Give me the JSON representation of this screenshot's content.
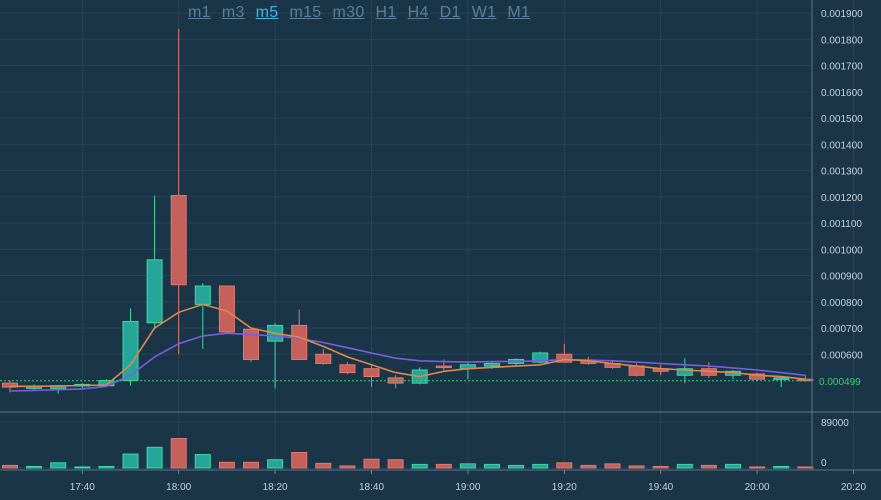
{
  "timeframes": [
    {
      "label": "m1",
      "active": false
    },
    {
      "label": "m3",
      "active": false
    },
    {
      "label": "m5",
      "active": true
    },
    {
      "label": "m15",
      "active": false
    },
    {
      "label": "m30",
      "active": false
    },
    {
      "label": "H1",
      "active": false
    },
    {
      "label": "H4",
      "active": false
    },
    {
      "label": "D1",
      "active": false
    },
    {
      "label": "W1",
      "active": false
    },
    {
      "label": "M1",
      "active": false
    }
  ],
  "colors": {
    "up": "#26a69a",
    "down": "#c5605a",
    "ma_fast": "#e0894a",
    "ma_slow": "#7a5ee0",
    "last_price": "#34d06b",
    "grid": "#274559"
  },
  "chart_data": {
    "type": "candlestick",
    "price_ticks": [
      "0.001900",
      "0.001800",
      "0.001700",
      "0.001600",
      "0.001500",
      "0.001400",
      "0.001300",
      "0.001200",
      "0.001100",
      "0.001000",
      "0.000900",
      "0.000800",
      "0.000700",
      "0.000600"
    ],
    "last_price_label": "0.000499",
    "last_price": 0.000499,
    "ylim": [
      0.00038,
      0.00195
    ],
    "time_labels": [
      "17:40",
      "18:00",
      "18:20",
      "18:40",
      "19:00",
      "19:20",
      "19:40",
      "20:00",
      "20:20"
    ],
    "time_label_indices": [
      3,
      7,
      11,
      15,
      19,
      23,
      27,
      31,
      35
    ],
    "volume_ticks": [
      "89000",
      "0"
    ],
    "volume_ylim": [
      0,
      89000
    ],
    "candles": [
      {
        "o": 0.00049,
        "h": 0.0005,
        "l": 0.000455,
        "c": 0.000475,
        "v": 5000
      },
      {
        "o": 0.00047,
        "h": 0.000485,
        "l": 0.00046,
        "c": 0.000478,
        "v": 3000
      },
      {
        "o": 0.00047,
        "h": 0.000482,
        "l": 0.00045,
        "c": 0.00048,
        "v": 10000
      },
      {
        "o": 0.00048,
        "h": 0.00049,
        "l": 0.00047,
        "c": 0.000485,
        "v": 2000
      },
      {
        "o": 0.00048,
        "h": 0.000505,
        "l": 0.000475,
        "c": 0.0005,
        "v": 3000
      },
      {
        "o": 0.0005,
        "h": 0.000775,
        "l": 0.00048,
        "c": 0.000725,
        "v": 27000
      },
      {
        "o": 0.00072,
        "h": 0.001205,
        "l": 0.0007,
        "c": 0.00096,
        "v": 40000
      },
      {
        "o": 0.001205,
        "h": 0.00184,
        "l": 0.0006,
        "c": 0.000865,
        "v": 57000
      },
      {
        "o": 0.00079,
        "h": 0.00087,
        "l": 0.00062,
        "c": 0.00086,
        "v": 26000
      },
      {
        "o": 0.00086,
        "h": 0.00086,
        "l": 0.00069,
        "c": 0.000685,
        "v": 11000
      },
      {
        "o": 0.000695,
        "h": 0.000695,
        "l": 0.00057,
        "c": 0.00058,
        "v": 11000
      },
      {
        "o": 0.00065,
        "h": 0.00072,
        "l": 0.00047,
        "c": 0.00071,
        "v": 16000
      },
      {
        "o": 0.00071,
        "h": 0.00077,
        "l": 0.00058,
        "c": 0.00058,
        "v": 30000
      },
      {
        "o": 0.0006,
        "h": 0.00062,
        "l": 0.00056,
        "c": 0.000565,
        "v": 9000
      },
      {
        "o": 0.00056,
        "h": 0.00057,
        "l": 0.000525,
        "c": 0.00053,
        "v": 4000
      },
      {
        "o": 0.000545,
        "h": 0.00056,
        "l": 0.000475,
        "c": 0.000515,
        "v": 17000
      },
      {
        "o": 0.00051,
        "h": 0.00052,
        "l": 0.00047,
        "c": 0.00049,
        "v": 16000
      },
      {
        "o": 0.00049,
        "h": 0.00055,
        "l": 0.000485,
        "c": 0.00054,
        "v": 7000
      },
      {
        "o": 0.000555,
        "h": 0.00058,
        "l": 0.00054,
        "c": 0.00055,
        "v": 7000
      },
      {
        "o": 0.000545,
        "h": 0.00057,
        "l": 0.000505,
        "c": 0.00056,
        "v": 8000
      },
      {
        "o": 0.000555,
        "h": 0.000575,
        "l": 0.000545,
        "c": 0.000565,
        "v": 7000
      },
      {
        "o": 0.000565,
        "h": 0.000585,
        "l": 0.000555,
        "c": 0.00058,
        "v": 5000
      },
      {
        "o": 0.00057,
        "h": 0.00061,
        "l": 0.000565,
        "c": 0.000605,
        "v": 7000
      },
      {
        "o": 0.0006,
        "h": 0.00064,
        "l": 0.000575,
        "c": 0.00057,
        "v": 10000
      },
      {
        "o": 0.000575,
        "h": 0.00059,
        "l": 0.00056,
        "c": 0.000565,
        "v": 5000
      },
      {
        "o": 0.000565,
        "h": 0.000575,
        "l": 0.000545,
        "c": 0.00055,
        "v": 8000
      },
      {
        "o": 0.000555,
        "h": 0.000565,
        "l": 0.000515,
        "c": 0.00052,
        "v": 4000
      },
      {
        "o": 0.000545,
        "h": 0.00056,
        "l": 0.00052,
        "c": 0.000535,
        "v": 3000
      },
      {
        "o": 0.00052,
        "h": 0.000585,
        "l": 0.00049,
        "c": 0.000545,
        "v": 7000
      },
      {
        "o": 0.000545,
        "h": 0.00057,
        "l": 0.00051,
        "c": 0.00052,
        "v": 5000
      },
      {
        "o": 0.00052,
        "h": 0.00054,
        "l": 0.000505,
        "c": 0.000535,
        "v": 7000
      },
      {
        "o": 0.000525,
        "h": 0.00053,
        "l": 0.0005,
        "c": 0.000505,
        "v": 2000
      },
      {
        "o": 0.000505,
        "h": 0.000515,
        "l": 0.000475,
        "c": 0.00051,
        "v": 3000
      },
      {
        "o": 0.000505,
        "h": 0.00052,
        "l": 0.000495,
        "c": 0.0005,
        "v": 2000
      }
    ],
    "ma_fast": [
      0.000478,
      0.000478,
      0.000479,
      0.000481,
      0.000483,
      0.00056,
      0.0007,
      0.00076,
      0.00079,
      0.000765,
      0.0007,
      0.00068,
      0.000665,
      0.00063,
      0.00059,
      0.00056,
      0.00053,
      0.000515,
      0.000535,
      0.000545,
      0.00055,
      0.000555,
      0.00056,
      0.00058,
      0.000575,
      0.000565,
      0.000555,
      0.000545,
      0.00054,
      0.000535,
      0.00053,
      0.00052,
      0.000515,
      0.000505
    ],
    "ma_slow": [
      0.00046,
      0.000462,
      0.000465,
      0.000468,
      0.000478,
      0.00052,
      0.00059,
      0.00064,
      0.00067,
      0.00068,
      0.000675,
      0.00067,
      0.00066,
      0.000645,
      0.000625,
      0.000605,
      0.000585,
      0.000575,
      0.000572,
      0.00057,
      0.000572,
      0.000573,
      0.000575,
      0.00058,
      0.000578,
      0.000575,
      0.00057,
      0.000565,
      0.00056,
      0.000555,
      0.000548,
      0.00054,
      0.00053,
      0.00052
    ]
  }
}
